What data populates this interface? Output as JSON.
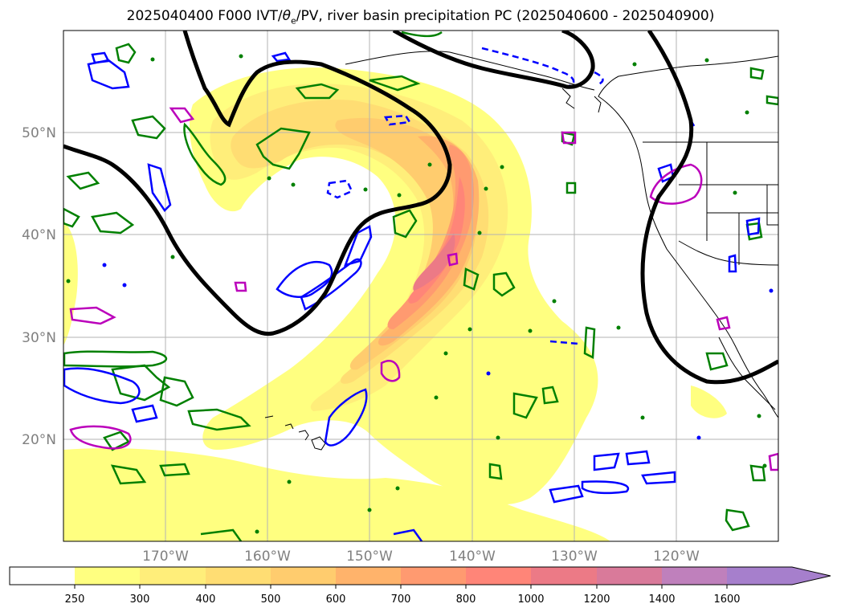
{
  "title_prefix": "2025040400 F000 IVT/",
  "title_theta": "θ",
  "title_theta_sub": "e",
  "title_suffix": "/PV, river basin precipitation PC (2025040600 - 2025040900)",
  "colors": {
    "ivt_250": "#ffff80",
    "ivt_300": "#ffee7a",
    "ivt_400": "#ffdd73",
    "ivt_500": "#ffcc6e",
    "ivt_600": "#ffb36b",
    "ivt_700": "#ff9a70",
    "ivt_800": "#ff8578",
    "ivt_1000": "#ec7a86",
    "ivt_1200": "#d97a9a",
    "ivt_1400": "#bf80bc",
    "ivt_1600": "#a67fcc",
    "pv_contour": "#000000",
    "theta_e_positive": "#008000",
    "theta_e_negative": "#0000ff",
    "precip_pc": "#bb00bb",
    "coastline": "#000000",
    "gridline": "#b3b3b3"
  },
  "map": {
    "lon_range": [
      -180,
      -110
    ],
    "lat_range": [
      10,
      60
    ],
    "lat_ticks": [
      "50°N",
      "40°N",
      "30°N",
      "20°N"
    ],
    "lon_ticks": [
      "170°W",
      "160°W",
      "150°W",
      "140°W",
      "130°W",
      "120°W"
    ]
  },
  "colorbar": {
    "levels": [
      "250",
      "300",
      "400",
      "500",
      "600",
      "700",
      "800",
      "1000",
      "1200",
      "1400",
      "1600"
    ],
    "extend": "max"
  }
}
